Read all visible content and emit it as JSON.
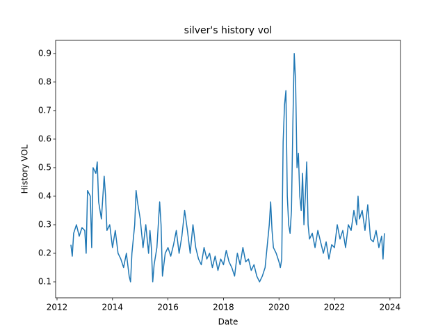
{
  "chart_data": {
    "type": "line",
    "title": "silver's history vol",
    "x_label": "Date",
    "y_label": "History VOL",
    "x": [
      2012.5,
      2012.55,
      2012.6,
      2012.7,
      2012.8,
      2012.9,
      2013.0,
      2013.05,
      2013.1,
      2013.2,
      2013.25,
      2013.3,
      2013.4,
      2013.45,
      2013.5,
      2013.6,
      2013.7,
      2013.75,
      2013.8,
      2013.9,
      2014.0,
      2014.1,
      2014.2,
      2014.3,
      2014.4,
      2014.5,
      2014.6,
      2014.65,
      2014.7,
      2014.8,
      2014.85,
      2014.9,
      2015.0,
      2015.1,
      2015.2,
      2015.3,
      2015.35,
      2015.4,
      2015.45,
      2015.5,
      2015.6,
      2015.7,
      2015.75,
      2015.8,
      2015.9,
      2016.0,
      2016.1,
      2016.2,
      2016.3,
      2016.4,
      2016.5,
      2016.6,
      2016.7,
      2016.8,
      2016.9,
      2017.0,
      2017.1,
      2017.2,
      2017.3,
      2017.4,
      2017.5,
      2017.6,
      2017.7,
      2017.8,
      2017.9,
      2018.0,
      2018.1,
      2018.2,
      2018.3,
      2018.4,
      2018.5,
      2018.6,
      2018.7,
      2018.8,
      2018.9,
      2019.0,
      2019.1,
      2019.2,
      2019.3,
      2019.4,
      2019.5,
      2019.6,
      2019.65,
      2019.7,
      2019.75,
      2019.8,
      2019.9,
      2020.0,
      2020.05,
      2020.1,
      2020.15,
      2020.2,
      2020.25,
      2020.3,
      2020.35,
      2020.4,
      2020.45,
      2020.5,
      2020.55,
      2020.6,
      2020.65,
      2020.7,
      2020.75,
      2020.8,
      2020.85,
      2020.9,
      2020.95,
      2021.0,
      2021.05,
      2021.1,
      2021.2,
      2021.3,
      2021.4,
      2021.5,
      2021.6,
      2021.7,
      2021.8,
      2021.9,
      2022.0,
      2022.1,
      2022.2,
      2022.3,
      2022.4,
      2022.5,
      2022.6,
      2022.7,
      2022.8,
      2022.85,
      2022.9,
      2023.0,
      2023.1,
      2023.2,
      2023.3,
      2023.4,
      2023.5,
      2023.6,
      2023.7,
      2023.75,
      2023.8
    ],
    "series": [
      {
        "name": "History VOL",
        "color": "#1f77b4",
        "values": [
          0.23,
          0.19,
          0.27,
          0.3,
          0.26,
          0.29,
          0.28,
          0.2,
          0.42,
          0.4,
          0.22,
          0.5,
          0.48,
          0.52,
          0.38,
          0.32,
          0.47,
          0.4,
          0.28,
          0.3,
          0.22,
          0.28,
          0.2,
          0.18,
          0.15,
          0.2,
          0.12,
          0.1,
          0.2,
          0.3,
          0.42,
          0.38,
          0.32,
          0.22,
          0.3,
          0.2,
          0.28,
          0.22,
          0.1,
          0.16,
          0.22,
          0.38,
          0.3,
          0.12,
          0.2,
          0.22,
          0.19,
          0.23,
          0.28,
          0.2,
          0.26,
          0.35,
          0.28,
          0.2,
          0.3,
          0.22,
          0.18,
          0.16,
          0.22,
          0.18,
          0.2,
          0.15,
          0.19,
          0.14,
          0.18,
          0.16,
          0.21,
          0.17,
          0.15,
          0.12,
          0.2,
          0.16,
          0.22,
          0.17,
          0.18,
          0.14,
          0.16,
          0.12,
          0.1,
          0.12,
          0.15,
          0.25,
          0.3,
          0.38,
          0.28,
          0.22,
          0.2,
          0.17,
          0.15,
          0.18,
          0.59,
          0.72,
          0.77,
          0.4,
          0.3,
          0.27,
          0.35,
          0.65,
          0.9,
          0.8,
          0.5,
          0.55,
          0.4,
          0.35,
          0.48,
          0.3,
          0.4,
          0.52,
          0.3,
          0.25,
          0.27,
          0.22,
          0.28,
          0.24,
          0.2,
          0.24,
          0.18,
          0.23,
          0.22,
          0.3,
          0.25,
          0.28,
          0.22,
          0.3,
          0.28,
          0.35,
          0.3,
          0.4,
          0.32,
          0.35,
          0.28,
          0.37,
          0.25,
          0.24,
          0.28,
          0.22,
          0.26,
          0.18,
          0.27
        ]
      }
    ],
    "xlim": [
      2011.95,
      2024.38
    ],
    "xticks": [
      2012,
      2014,
      2016,
      2018,
      2020,
      2022,
      2024
    ],
    "ylim": [
      0.044,
      0.946
    ],
    "yticks": [
      0.1,
      0.2,
      0.3,
      0.4,
      0.5,
      0.6,
      0.7,
      0.8,
      0.9
    ]
  }
}
